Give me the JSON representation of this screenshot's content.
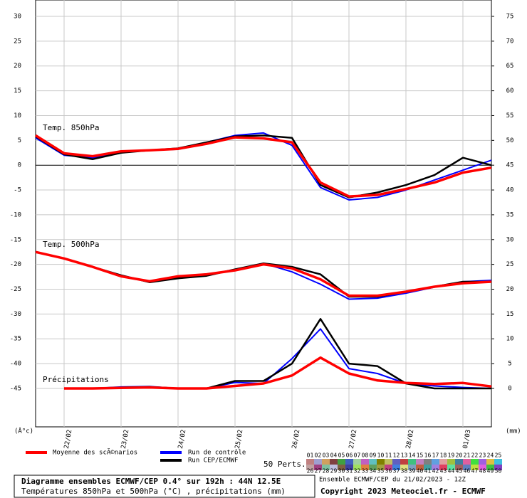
{
  "chart_data": {
    "type": "line",
    "x": [
      0,
      12,
      24,
      36,
      48,
      60,
      72,
      84,
      96,
      108,
      120,
      132,
      144,
      156,
      168,
      180,
      192
    ],
    "xlim": [
      0,
      192
    ],
    "xticks": [
      {
        "value": 12,
        "label": "22/02"
      },
      {
        "value": 36,
        "label": "23/02"
      },
      {
        "value": 60,
        "label": "24/02"
      },
      {
        "value": 84,
        "label": "25/02"
      },
      {
        "value": 108,
        "label": "26/02"
      },
      {
        "value": 132,
        "label": "27/02"
      },
      {
        "value": 156,
        "label": "28/02"
      },
      {
        "value": 180,
        "label": "01/03"
      }
    ],
    "ylim": [
      -52.75,
      33.3
    ],
    "yticks": [
      30,
      25,
      20,
      15,
      10,
      5,
      0,
      -5,
      -10,
      -15,
      -20,
      -25,
      -30,
      -35,
      -40,
      -45
    ],
    "y2lim": [
      -7.75,
      78.3
    ],
    "y2ticks": [
      75,
      70,
      65,
      60,
      55,
      50,
      45,
      40,
      35,
      30,
      25,
      20,
      15,
      10,
      5,
      0
    ],
    "ylabel": "(Â°c)",
    "y2label": "(mm)",
    "grid": true,
    "panel_labels": [
      "Temp. 850hPa",
      "Temp. 500hPa",
      "Précipitations"
    ],
    "series": [
      {
        "name": "Moyenne des scÃ©narios",
        "color": "#ff0000",
        "t850": [
          6,
          2.4,
          1.8,
          2.8,
          3,
          3.3,
          4.3,
          5.6,
          5.4,
          4.6,
          -3.5,
          -6.3,
          -6,
          -4.8,
          -3.5,
          -1.5,
          -0.5
        ],
        "t500": [
          -17.5,
          -18.8,
          -20.5,
          -22.4,
          -23.4,
          -22.4,
          -22,
          -21.2,
          -20,
          -20.8,
          -23,
          -26.3,
          -26.3,
          -25.5,
          -24.5,
          -23.8,
          -23.5
        ],
        "precip": [
          null,
          0,
          0,
          0.1,
          0.2,
          0,
          0,
          0.5,
          1,
          2.6,
          6.2,
          3,
          1.6,
          1.1,
          0.9,
          1.1,
          0.4
        ]
      },
      {
        "name": "Run de contrôle",
        "color": "#0000ff",
        "t850": [
          5.5,
          2,
          1.5,
          2.6,
          3,
          3.2,
          4.6,
          6,
          6.5,
          4,
          -4.5,
          -7,
          -6.5,
          -5,
          -3,
          -1,
          1
        ],
        "t500": [
          -17.5,
          -18.8,
          -20.5,
          -22.2,
          -23.5,
          -22.6,
          -22.2,
          -21,
          -19.8,
          -21.5,
          -24,
          -27,
          -26.8,
          -25.8,
          -24.6,
          -23.5,
          -23.2
        ],
        "precip": [
          null,
          0,
          0,
          0.3,
          0.4,
          0,
          0,
          1.2,
          1,
          6,
          12,
          4,
          3,
          1,
          0.5,
          0.2,
          0
        ]
      },
      {
        "name": "Run CEP/ECMWF",
        "color": "#000000",
        "t850": [
          5.8,
          2.2,
          1.2,
          2.5,
          3,
          3.4,
          4.6,
          5.8,
          6,
          5.5,
          -4,
          -6.5,
          -5.5,
          -4,
          -2,
          1.5,
          0
        ],
        "t500": [
          -17.5,
          -18.8,
          -20.5,
          -22.2,
          -23.6,
          -22.8,
          -22.3,
          -21,
          -19.8,
          -20.5,
          -22,
          -26.5,
          -26.5,
          -25.5,
          -24.5,
          -23.5,
          -23.5
        ],
        "precip": [
          null,
          0,
          0,
          0.2,
          0.3,
          0,
          0,
          1.5,
          1.5,
          5,
          14,
          5,
          4.5,
          1,
          0,
          0,
          0
        ]
      }
    ],
    "perts_label": "50 Perts.",
    "perts": [
      {
        "label": "01",
        "color": "#c08080"
      },
      {
        "label": "02",
        "color": "#a0a0d0"
      },
      {
        "label": "03",
        "color": "#d0a060"
      },
      {
        "label": "04",
        "color": "#804040"
      },
      {
        "label": "05",
        "color": "#40a040"
      },
      {
        "label": "06",
        "color": "#4060c0"
      },
      {
        "label": "07",
        "color": "#a0d0a0"
      },
      {
        "label": "08",
        "color": "#c060c0"
      },
      {
        "label": "09",
        "color": "#60c0c0"
      },
      {
        "label": "10",
        "color": "#808000"
      },
      {
        "label": "11",
        "color": "#c0c060"
      },
      {
        "label": "12",
        "color": "#6060c0"
      },
      {
        "label": "13",
        "color": "#c04040"
      },
      {
        "label": "14",
        "color": "#40c080"
      },
      {
        "label": "15",
        "color": "#c080c0"
      },
      {
        "label": "16",
        "color": "#808080"
      },
      {
        "label": "17",
        "color": "#60a0e0"
      },
      {
        "label": "18",
        "color": "#e0a0a0"
      },
      {
        "label": "19",
        "color": "#a0c040"
      },
      {
        "label": "20",
        "color": "#4080a0"
      },
      {
        "label": "21",
        "color": "#e060a0"
      },
      {
        "label": "22",
        "color": "#40e040"
      },
      {
        "label": "23",
        "color": "#a060e0"
      },
      {
        "label": "24",
        "color": "#e0c040"
      },
      {
        "label": "25",
        "color": "#40c0e0"
      },
      {
        "label": "26",
        "color": "#c0a0a0"
      },
      {
        "label": "27",
        "color": "#a04080"
      },
      {
        "label": "28",
        "color": "#80c0a0"
      },
      {
        "label": "29",
        "color": "#c0c0e0"
      },
      {
        "label": "30",
        "color": "#806040"
      },
      {
        "label": "31",
        "color": "#4040a0"
      },
      {
        "label": "32",
        "color": "#a0e060"
      },
      {
        "label": "33",
        "color": "#e08040"
      },
      {
        "label": "34",
        "color": "#60a060"
      },
      {
        "label": "35",
        "color": "#a0a040"
      },
      {
        "label": "36",
        "color": "#c04080"
      },
      {
        "label": "37",
        "color": "#4080e0"
      },
      {
        "label": "38",
        "color": "#e0e080"
      },
      {
        "label": "39",
        "color": "#80a0c0"
      },
      {
        "label": "40",
        "color": "#c06040"
      },
      {
        "label": "41",
        "color": "#40a0a0"
      },
      {
        "label": "42",
        "color": "#a080e0"
      },
      {
        "label": "43",
        "color": "#e04060"
      },
      {
        "label": "44",
        "color": "#60e0a0"
      },
      {
        "label": "45",
        "color": "#a06060"
      },
      {
        "label": "46",
        "color": "#6080c0"
      },
      {
        "label": "47",
        "color": "#c0e040"
      },
      {
        "label": "48",
        "color": "#e060e0"
      },
      {
        "label": "49",
        "color": "#40c040"
      },
      {
        "label": "50",
        "color": "#8040c0"
      }
    ],
    "run_info": "Ensemble ECMWF/CEP du 21/02/2023 - 12Z",
    "copyright": "Copyright 2023 Meteociel.fr - ECMWF",
    "caption_title": "Diagramme ensembles ECMWF/CEP 0.4° sur 192h : 44N 12.5E",
    "caption_subtitle": "Températures 850hPa et 500hPa (°C) , précipitations (mm)"
  }
}
